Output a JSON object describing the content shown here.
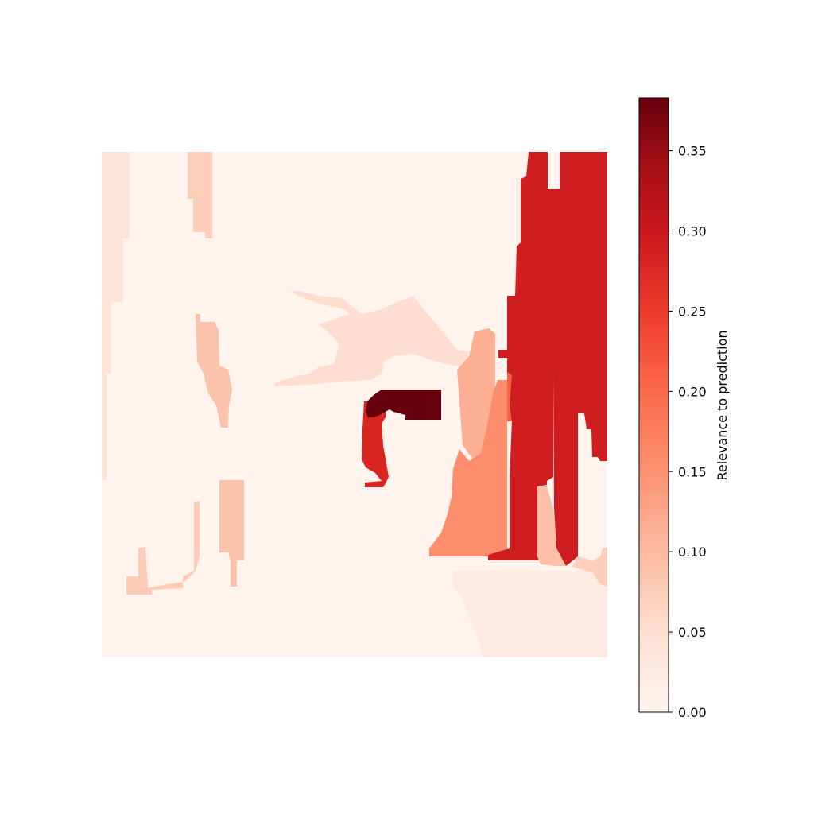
{
  "chart_data": {
    "type": "heatmap",
    "title": "",
    "xlabel": "",
    "ylabel": "",
    "axes_visible": false,
    "colormap": "Reds",
    "value_range": [
      0.0,
      0.383
    ],
    "colorbar": {
      "label": "Relevance to prediction",
      "ticks": [
        "0.00",
        "0.05",
        "0.10",
        "0.15",
        "0.20",
        "0.25",
        "0.30",
        "0.35"
      ],
      "tick_values": [
        0.0,
        0.05,
        0.1,
        0.15,
        0.2,
        0.25,
        0.3,
        0.35
      ],
      "placement": "right"
    },
    "background_value": 0.005,
    "regions": [
      {
        "id": "left-strip",
        "value": 0.04
      },
      {
        "id": "upper-left-streak",
        "value": 0.07
      },
      {
        "id": "left-mid-streak",
        "value": 0.085
      },
      {
        "id": "lower-left-shape",
        "value": 0.075
      },
      {
        "id": "lower-left-strip",
        "value": 0.085
      },
      {
        "id": "center-wing",
        "value": 0.05
      },
      {
        "id": "center-right-light",
        "value": 0.11
      },
      {
        "id": "bottom-right-pale",
        "value": 0.025
      },
      {
        "id": "right-mid-orange",
        "value": 0.15
      },
      {
        "id": "small-orange-strip",
        "value": 0.2
      },
      {
        "id": "right-red-main",
        "value": 0.28
      },
      {
        "id": "right-red-far",
        "value": 0.28
      },
      {
        "id": "right-light-strip",
        "value": 0.09
      },
      {
        "id": "right-edge-light",
        "value": 0.07
      },
      {
        "id": "center-red-hook",
        "value": 0.27
      },
      {
        "id": "center-dark-bar",
        "value": 0.383
      }
    ]
  }
}
